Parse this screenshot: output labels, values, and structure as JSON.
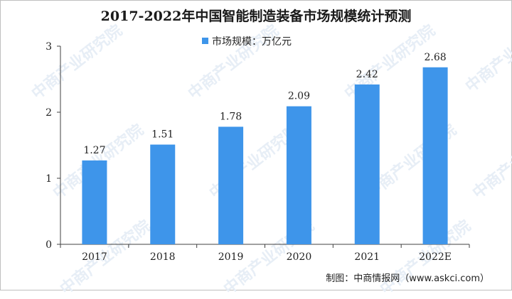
{
  "title": "2017-2022年中国智能制造装备市场规模统计预测",
  "source": "制图：中商情报网（www.askci.com）",
  "watermark_text": "中商产业研究院",
  "colors": {
    "bar": "#3e95ea",
    "axis": "#404040",
    "text": "#222222"
  },
  "chart_data": {
    "type": "bar",
    "title": "2017-2022年中国智能制造装备市场规模统计预测",
    "categories": [
      "2017",
      "2018",
      "2019",
      "2020",
      "2021",
      "2022E"
    ],
    "series": [
      {
        "name": "市场规模：万亿元",
        "values": [
          1.27,
          1.51,
          1.78,
          2.09,
          2.42,
          2.68
        ]
      }
    ],
    "ylim": [
      0,
      3
    ],
    "yticks": [
      "0",
      "1",
      "2",
      "3"
    ],
    "grid": false,
    "legend": "top-center",
    "data_labels": [
      "1.27",
      "1.51",
      "1.78",
      "2.09",
      "2.42",
      "2.68"
    ]
  }
}
